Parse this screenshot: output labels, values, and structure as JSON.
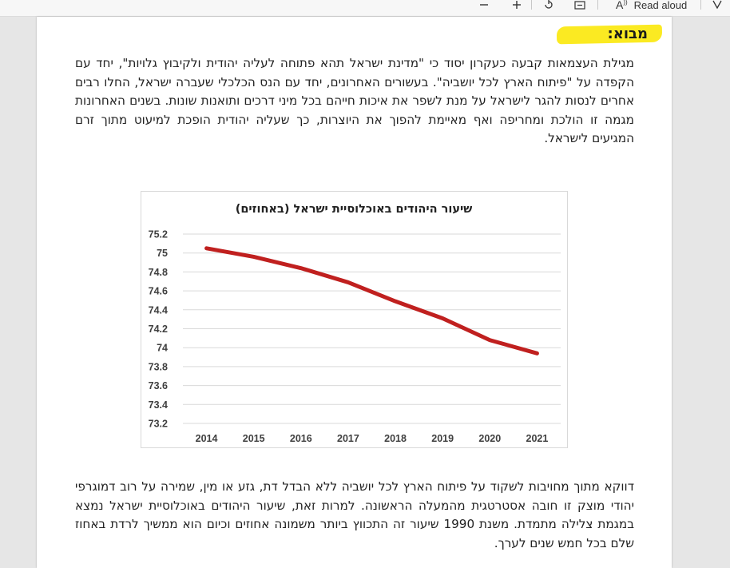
{
  "toolbar": {
    "zoom_out_icon": "minus-icon",
    "zoom_in_icon": "plus-icon",
    "rotate_icon": "rotate-icon",
    "fit_icon": "fit-page-icon",
    "read_aloud_label": "Read aloud",
    "draw_icon": "draw-icon"
  },
  "document": {
    "heading": "מבוא:",
    "paragraph_1": "מגילת העצמאות קבעה כעקרון יסוד כי \"מדינת ישראל תהא פתוחה לעליה יהודית ולקיבוץ גלויות\", יחד עם הקפדה על \"פיתוח הארץ לכל יושביה\". בעשורים האחרונים, יחד עם הנס הכלכלי שעברה ישראל, החלו רבים אחרים לנסות להגר לישראל על מנת לשפר את איכות חייהם בכל מיני דרכים ותואנות שונות. בשנים האחרונות מגמה זו הולכת ומחריפה ואף מאיימת להפוך את היוצרות, כך שעליה יהודית הופכת למיעוט מתוך זרם המגיעים לישראל.",
    "paragraph_2": "דווקא מתוך מחויבות לשקוד על פיתוח הארץ לכל יושביה ללא הבדל דת, גזע או מין, שמירה על רוב דמוגרפי יהודי מוצק זו חובה אסטרטגית מהמעלה הראשונה. למרות זאת, שיעור היהודים באוכלוסיית ישראל נמצא במגמת צלילה מתמדת. משנת 1990 שיעור זה התכווץ ביותר משמונה אחוזים וכיום הוא ממשיך לרדת באחוז שלם בכל חמש שנים לערך."
  },
  "chart_data": {
    "type": "line",
    "title": "שיעור היהודים באוכלוסיית ישראל (באחוזים)",
    "categories": [
      "2014",
      "2015",
      "2016",
      "2017",
      "2018",
      "2019",
      "2020",
      "2021"
    ],
    "series": [
      {
        "values": [
          75.05,
          74.96,
          74.84,
          74.69,
          74.49,
          74.31,
          74.08,
          73.94
        ],
        "color": "#c0201f"
      }
    ],
    "yticks": [
      "75.2",
      "75",
      "74.8",
      "74.6",
      "74.4",
      "74.2",
      "74",
      "73.8",
      "73.6",
      "73.4",
      "73.2"
    ],
    "ylim": [
      73.2,
      75.2
    ],
    "grid": true,
    "xlabel": "",
    "ylabel": ""
  }
}
